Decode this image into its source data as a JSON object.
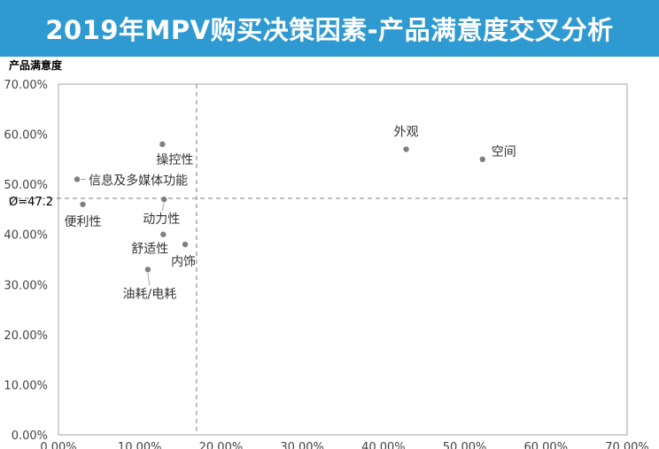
{
  "header": {
    "title": "2019年MPV购买决策因素-产品满意度交叉分析"
  },
  "chart_data": {
    "type": "scatter",
    "title": "2019年MPV购买决策因素-产品满意度交叉分析",
    "xlabel": "",
    "ylabel": "产品满意度",
    "xlim": [
      0,
      70
    ],
    "ylim": [
      0,
      70
    ],
    "x_ticks": [
      "0.00%",
      "10.00%",
      "20.00%",
      "30.00%",
      "40.00%",
      "50.00%",
      "60.00%",
      "70.00%"
    ],
    "y_ticks": [
      "0.00%",
      "10.00%",
      "20.00%",
      "30.00%",
      "40.00%",
      "50.00%",
      "60.00%",
      "70.00%"
    ],
    "reference_lines": {
      "x": 17.0,
      "y": 47.2,
      "y_label": "Ø=47.2"
    },
    "grid": false,
    "colors": {
      "header": "#2e9ad1",
      "point": "#7f7f7f",
      "axis": "#a6a6a6"
    },
    "points": [
      {
        "label": "外观",
        "x": 42.8,
        "y": 57.0
      },
      {
        "label": "空间",
        "x": 52.2,
        "y": 55.0
      },
      {
        "label": "操控性",
        "x": 12.8,
        "y": 58.0
      },
      {
        "label": "信息及多媒体功能",
        "x": 2.3,
        "y": 51.0
      },
      {
        "label": "便利性",
        "x": 3.0,
        "y": 46.0
      },
      {
        "label": "动力性",
        "x": 13.0,
        "y": 47.0
      },
      {
        "label": "舒适性",
        "x": 12.9,
        "y": 40.0
      },
      {
        "label": "内饰",
        "x": 15.6,
        "y": 38.0
      },
      {
        "label": "油耗/电耗",
        "x": 11.0,
        "y": 33.0
      }
    ]
  }
}
